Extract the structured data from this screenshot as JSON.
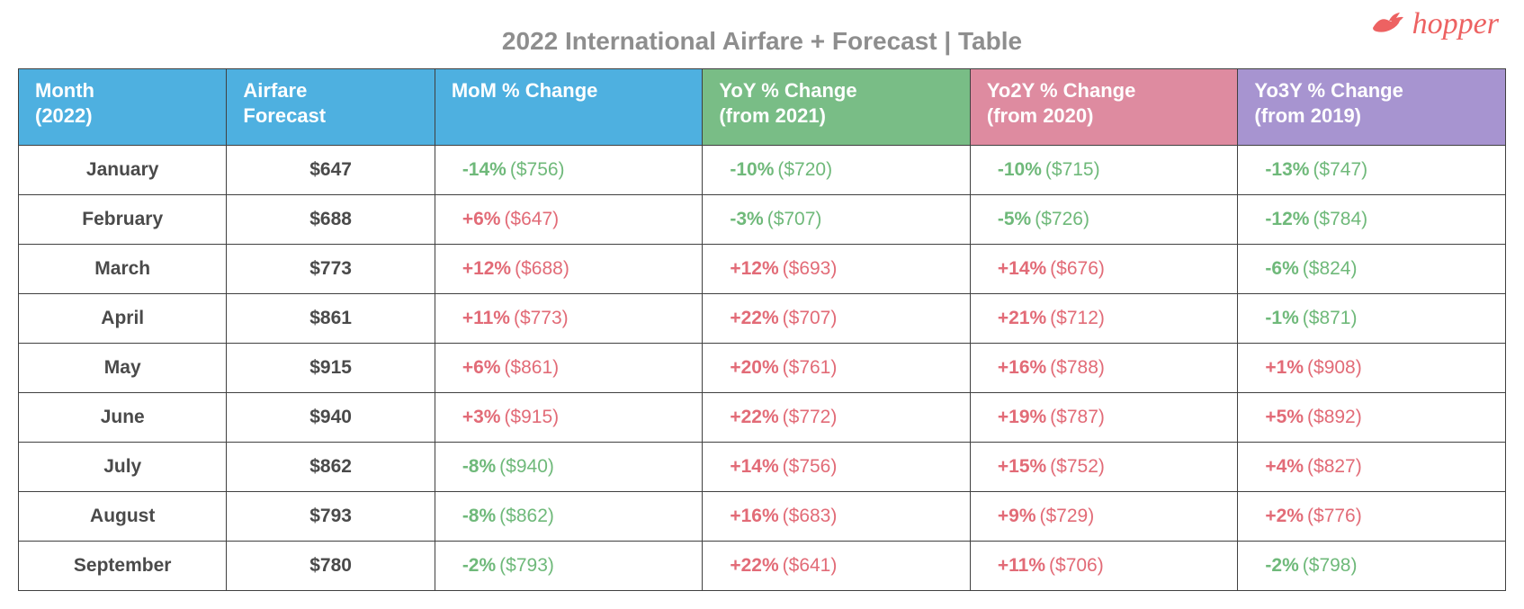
{
  "brand": {
    "name": "hopper",
    "color": "#ed6262"
  },
  "title": "2022 International Airfare + Forecast | Table",
  "title_color": "#8e8e8e",
  "title_fontsize": 28,
  "table": {
    "border_color": "#404040",
    "background_color": "#ffffff",
    "header_text_color": "#ffffff",
    "header_fontsize": 22,
    "cell_fontsize": 21,
    "label_text_color": "#4a4a4a",
    "positive_color": "#e26b77",
    "negative_color": "#6fb97a",
    "columns": [
      {
        "key": "month",
        "label_line1": "Month",
        "label_line2": "(2022)",
        "bg": "#4eb0e0",
        "width_pct": 14,
        "align": "center",
        "bold": true
      },
      {
        "key": "forecast",
        "label_line1": "Airfare",
        "label_line2": "Forecast",
        "bg": "#4eb0e0",
        "width_pct": 14,
        "align": "center",
        "bold": true
      },
      {
        "key": "mom",
        "label_line1": "MoM % Change",
        "label_line2": "",
        "bg": "#4eb0e0",
        "width_pct": 18,
        "align": "left"
      },
      {
        "key": "yoy",
        "label_line1": "YoY % Change",
        "label_line2": "(from 2021)",
        "bg": "#79bd86",
        "width_pct": 18,
        "align": "left"
      },
      {
        "key": "yo2y",
        "label_line1": "Yo2Y % Change",
        "label_line2": "(from 2020)",
        "bg": "#de8ba0",
        "width_pct": 18,
        "align": "left"
      },
      {
        "key": "yo3y",
        "label_line1": "Yo3Y % Change",
        "label_line2": "(from 2019)",
        "bg": "#a794d0",
        "width_pct": 18,
        "align": "left"
      }
    ],
    "rows": [
      {
        "month": "January",
        "forecast": "$647",
        "mom": {
          "pct": -14,
          "ref": "$756"
        },
        "yoy": {
          "pct": -10,
          "ref": "$720"
        },
        "yo2y": {
          "pct": -10,
          "ref": "$715"
        },
        "yo3y": {
          "pct": -13,
          "ref": "$747"
        }
      },
      {
        "month": "February",
        "forecast": "$688",
        "mom": {
          "pct": 6,
          "ref": "$647"
        },
        "yoy": {
          "pct": -3,
          "ref": "$707"
        },
        "yo2y": {
          "pct": -5,
          "ref": "$726"
        },
        "yo3y": {
          "pct": -12,
          "ref": "$784"
        }
      },
      {
        "month": "March",
        "forecast": "$773",
        "mom": {
          "pct": 12,
          "ref": "$688"
        },
        "yoy": {
          "pct": 12,
          "ref": "$693"
        },
        "yo2y": {
          "pct": 14,
          "ref": "$676"
        },
        "yo3y": {
          "pct": -6,
          "ref": "$824"
        }
      },
      {
        "month": "April",
        "forecast": "$861",
        "mom": {
          "pct": 11,
          "ref": "$773"
        },
        "yoy": {
          "pct": 22,
          "ref": "$707"
        },
        "yo2y": {
          "pct": 21,
          "ref": "$712"
        },
        "yo3y": {
          "pct": -1,
          "ref": "$871"
        }
      },
      {
        "month": "May",
        "forecast": "$915",
        "mom": {
          "pct": 6,
          "ref": "$861"
        },
        "yoy": {
          "pct": 20,
          "ref": "$761"
        },
        "yo2y": {
          "pct": 16,
          "ref": "$788"
        },
        "yo3y": {
          "pct": 1,
          "ref": "$908"
        }
      },
      {
        "month": "June",
        "forecast": "$940",
        "mom": {
          "pct": 3,
          "ref": "$915"
        },
        "yoy": {
          "pct": 22,
          "ref": "$772"
        },
        "yo2y": {
          "pct": 19,
          "ref": "$787"
        },
        "yo3y": {
          "pct": 5,
          "ref": "$892"
        }
      },
      {
        "month": "July",
        "forecast": "$862",
        "mom": {
          "pct": -8,
          "ref": "$940"
        },
        "yoy": {
          "pct": 14,
          "ref": "$756"
        },
        "yo2y": {
          "pct": 15,
          "ref": "$752"
        },
        "yo3y": {
          "pct": 4,
          "ref": "$827"
        }
      },
      {
        "month": "August",
        "forecast": "$793",
        "mom": {
          "pct": -8,
          "ref": "$862"
        },
        "yoy": {
          "pct": 16,
          "ref": "$683"
        },
        "yo2y": {
          "pct": 9,
          "ref": "$729"
        },
        "yo3y": {
          "pct": 2,
          "ref": "$776"
        }
      },
      {
        "month": "September",
        "forecast": "$780",
        "mom": {
          "pct": -2,
          "ref": "$793"
        },
        "yoy": {
          "pct": 22,
          "ref": "$641"
        },
        "yo2y": {
          "pct": 11,
          "ref": "$706"
        },
        "yo3y": {
          "pct": -2,
          "ref": "$798"
        }
      }
    ]
  }
}
